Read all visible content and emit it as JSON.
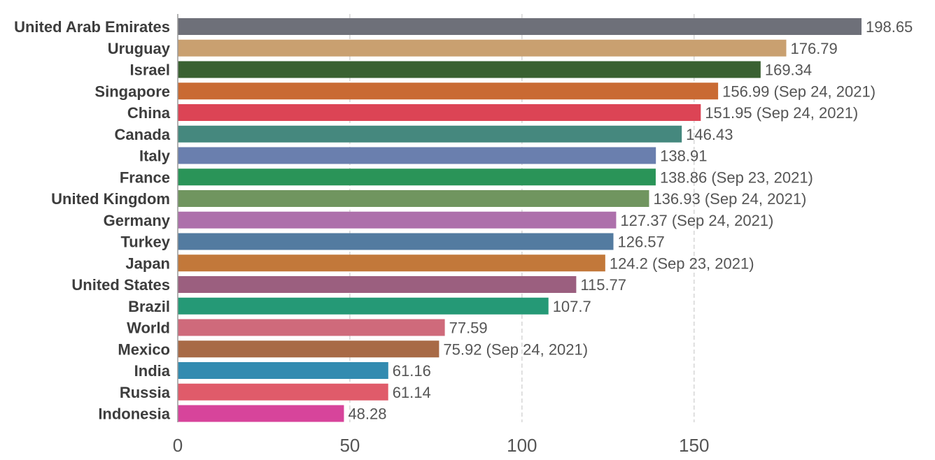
{
  "chart_data": {
    "type": "bar",
    "orientation": "horizontal",
    "categories": [
      "United Arab Emirates",
      "Uruguay",
      "Israel",
      "Singapore",
      "China",
      "Canada",
      "Italy",
      "France",
      "United Kingdom",
      "Germany",
      "Turkey",
      "Japan",
      "United States",
      "Brazil",
      "World",
      "Mexico",
      "India",
      "Russia",
      "Indonesia"
    ],
    "values": [
      198.65,
      176.79,
      169.34,
      156.99,
      151.95,
      146.43,
      138.91,
      138.86,
      136.93,
      127.37,
      126.57,
      124.2,
      115.77,
      107.7,
      77.59,
      75.92,
      61.16,
      61.14,
      48.28
    ],
    "value_labels": [
      "198.65",
      "176.79",
      "169.34",
      "156.99 (Sep 24, 2021)",
      "151.95 (Sep 24, 2021)",
      "146.43",
      "138.91",
      "138.86 (Sep 23, 2021)",
      "136.93 (Sep 24, 2021)",
      "127.37 (Sep 24, 2021)",
      "126.57",
      "124.2 (Sep 23, 2021)",
      "115.77",
      "107.7",
      "77.59",
      "75.92 (Sep 24, 2021)",
      "61.16",
      "61.14",
      "48.28"
    ],
    "colors": [
      "#6e7079",
      "#c9a070",
      "#3a6132",
      "#c96a33",
      "#dc4455",
      "#45887e",
      "#6a7fae",
      "#2a9458",
      "#70955f",
      "#ad70ab",
      "#537ba0",
      "#c2783a",
      "#9b5f7f",
      "#259976",
      "#cf6a7b",
      "#a86a46",
      "#338bb0",
      "#e05b6a",
      "#d7449b"
    ],
    "xlim": [
      0,
      200
    ],
    "xticks": [
      0,
      50,
      100,
      150
    ],
    "xtick_labels": [
      "0",
      "50",
      "100",
      "150"
    ],
    "grid": true,
    "title": "",
    "xlabel": "",
    "ylabel": ""
  }
}
